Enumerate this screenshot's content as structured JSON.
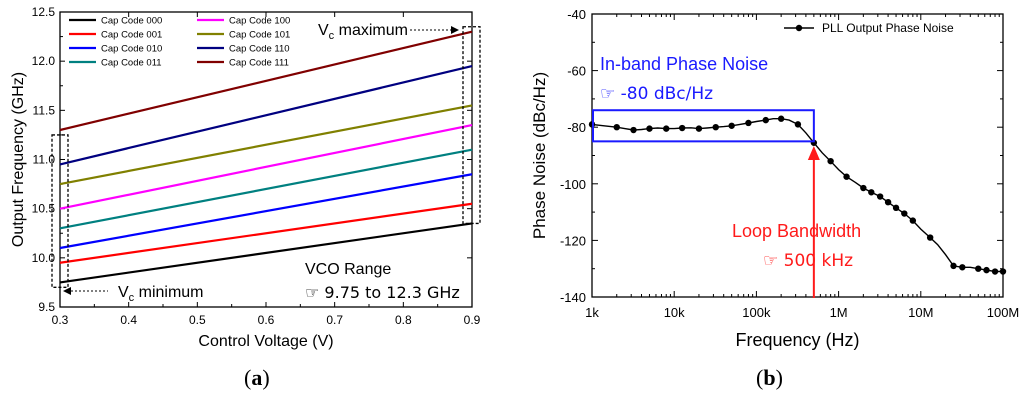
{
  "panels": [
    {
      "id": "a",
      "label": "a",
      "chart_data": {
        "type": "line",
        "title": "",
        "xlabel": "Control Voltage (V)",
        "ylabel": "Output Frequency (GHz)",
        "xlim": [
          0.3,
          0.9
        ],
        "ylim": [
          9.5,
          12.5
        ],
        "x_ticks": [
          "0.3",
          "0.4",
          "0.5",
          "0.6",
          "0.7",
          "0.8",
          "0.9"
        ],
        "x_tick_values": [
          0.3,
          0.4,
          0.5,
          0.6,
          0.7,
          0.8,
          0.9
        ],
        "y_ticks": [
          "9.5",
          "10.0",
          "10.5",
          "11.0",
          "11.5",
          "12.0",
          "12.5"
        ],
        "y_tick_values": [
          9.5,
          10.0,
          10.5,
          11.0,
          11.5,
          12.0,
          12.5
        ],
        "legend_position": "top-left",
        "legend_columns": 2,
        "grid": false,
        "series": [
          {
            "name": "Cap Code 000",
            "color": "#000000",
            "x": [
              0.3,
              0.9
            ],
            "y": [
              9.75,
              10.35
            ]
          },
          {
            "name": "Cap Code 001",
            "color": "#ff0000",
            "x": [
              0.3,
              0.9
            ],
            "y": [
              9.95,
              10.55
            ]
          },
          {
            "name": "Cap Code 010",
            "color": "#0000ff",
            "x": [
              0.3,
              0.9
            ],
            "y": [
              10.1,
              10.85
            ]
          },
          {
            "name": "Cap Code 011",
            "color": "#008080",
            "x": [
              0.3,
              0.9
            ],
            "y": [
              10.3,
              11.1
            ]
          },
          {
            "name": "Cap Code 100",
            "color": "#ff00ff",
            "x": [
              0.3,
              0.9
            ],
            "y": [
              10.5,
              11.35
            ]
          },
          {
            "name": "Cap Code 101",
            "color": "#808000",
            "x": [
              0.3,
              0.9
            ],
            "y": [
              10.75,
              11.55
            ]
          },
          {
            "name": "Cap Code 110",
            "color": "#000080",
            "x": [
              0.3,
              0.9
            ],
            "y": [
              10.95,
              11.95
            ]
          },
          {
            "name": "Cap Code 111",
            "color": "#800000",
            "x": [
              0.3,
              0.9
            ],
            "y": [
              11.3,
              12.3
            ]
          }
        ],
        "annotations": {
          "vc_max": {
            "text_main": "V",
            "text_sub": "c",
            "text_rest": " maximum",
            "x": 0.9,
            "box_y": [
              10.35,
              12.35
            ]
          },
          "vc_min": {
            "text_main": "V",
            "text_sub": "c",
            "text_rest": " minimum",
            "x": 0.3,
            "box_y": [
              9.7,
              11.25
            ]
          },
          "range_title": "VCO Range",
          "range_value": "☞ 9.75 to 12.3 GHz"
        }
      }
    },
    {
      "id": "b",
      "label": "b",
      "chart_data": {
        "type": "line",
        "title": "",
        "xlabel": "Frequency (Hz)",
        "ylabel": "Phase Noise (dBc/Hz)",
        "x_scale": "log",
        "xlim": [
          1000,
          100000000
        ],
        "ylim": [
          -140,
          -40
        ],
        "x_ticks": [
          "1k",
          "10k",
          "100k",
          "1M",
          "10M",
          "100M"
        ],
        "x_tick_values": [
          1000,
          10000,
          100000,
          1000000,
          10000000,
          100000000
        ],
        "y_ticks": [
          "-140",
          "-120",
          "-100",
          "-80",
          "-60",
          "-40"
        ],
        "y_tick_values": [
          -140,
          -120,
          -100,
          -80,
          -60,
          -40
        ],
        "legend_position": "top-right",
        "grid": false,
        "series": [
          {
            "name": "PLL Output Phase Noise",
            "color": "#000000",
            "x": [
              1000,
              1400,
              2000,
              2500,
              3200,
              4000,
              5000,
              6300,
              8000,
              10000,
              12500,
              16000,
              20000,
              25000,
              32000,
              40000,
              50000,
              63000,
              80000,
              100000,
              130000,
              160000,
              200000,
              250000,
              320000,
              400000,
              500000,
              630000,
              800000,
              1000000,
              1250000,
              1600000,
              2000000,
              2500000,
              3200000,
              4000000,
              5000000,
              6300000,
              8000000,
              10000000,
              13000000,
              16000000,
              20000000,
              25000000,
              32000000,
              40000000,
              50000000,
              63000000,
              80000000,
              100000000
            ],
            "y": [
              -79,
              -79.5,
              -80,
              -80.5,
              -81,
              -80.8,
              -80.5,
              -80.3,
              -80.5,
              -80.5,
              -80.3,
              -80.2,
              -80.5,
              -80.3,
              -80,
              -79.8,
              -79.5,
              -79,
              -78.5,
              -78,
              -77.5,
              -77,
              -77,
              -77.5,
              -79,
              -82,
              -85.5,
              -89,
              -92,
              -95,
              -97.5,
              -99.5,
              -101.5,
              -103,
              -104.5,
              -106.5,
              -108.5,
              -110.5,
              -113,
              -116,
              -119,
              -121.5,
              -125,
              -129,
              -129.5,
              -129.5,
              -130,
              -130.5,
              -131,
              -131
            ],
            "markers_x": [
              1000,
              2000,
              3200,
              5000,
              8000,
              12500,
              20000,
              32000,
              50000,
              80000,
              130000,
              200000,
              320000,
              500000,
              800000,
              1250000,
              2000000,
              2500000,
              3200000,
              4000000,
              5000000,
              6300000,
              8000000,
              13000000,
              25000000,
              32000000,
              50000000,
              63000000,
              80000000,
              100000000
            ],
            "markers_y": [
              -79,
              -80,
              -81,
              -80.5,
              -80.5,
              -80.3,
              -80.5,
              -80,
              -79.5,
              -78.5,
              -77.5,
              -77,
              -79,
              -85.5,
              -92,
              -97.5,
              -101.5,
              -103,
              -104.5,
              -106.5,
              -108.5,
              -110.5,
              -113,
              -119,
              -129,
              -129.5,
              -130,
              -130.5,
              -131,
              -131
            ]
          }
        ],
        "annotations": {
          "inband_title": "In-band Phase Noise",
          "inband_value": "☞ -80 dBc/Hz",
          "inband_box": {
            "x": [
              1000,
              500000
            ],
            "y": [
              -74,
              -85
            ]
          },
          "loop_title": "Loop Bandwidth",
          "loop_value": "☞ 500 kHz",
          "loop_x": 500000
        }
      }
    }
  ],
  "colors": {
    "axis": "#000000",
    "inband": "#1a1aff",
    "loop": "#ff1a1a"
  }
}
